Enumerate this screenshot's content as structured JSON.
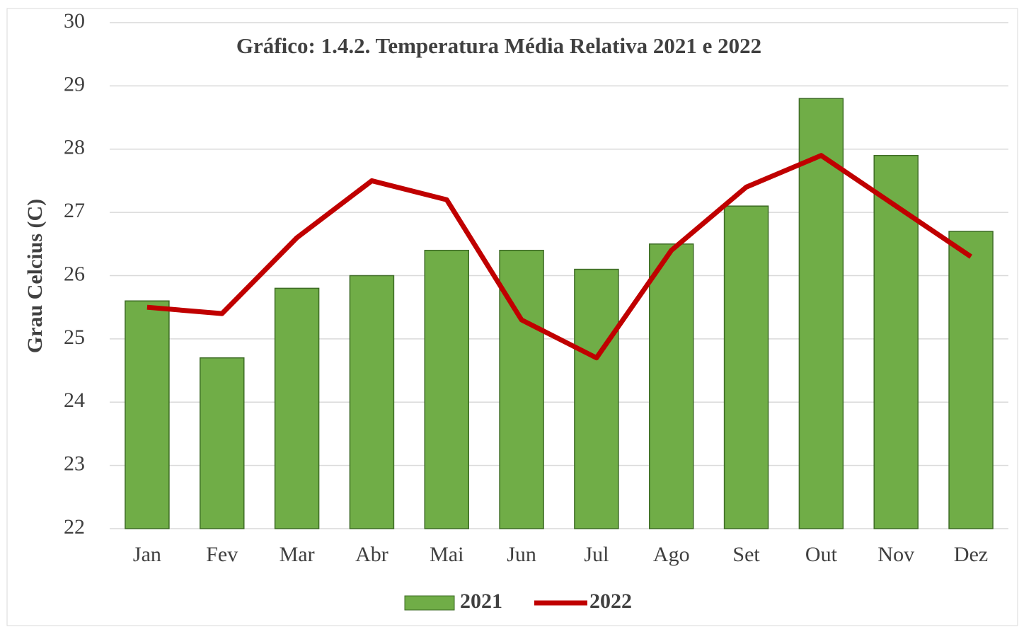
{
  "chart_data": {
    "type": "bar",
    "title": "Gráfico: 1.4.2. Temperatura Média Relativa 2021 e 2022",
    "y_label": "Grau Celcius (C)",
    "categories": [
      "Jan",
      "Fev",
      "Mar",
      "Abr",
      "Mai",
      "Jun",
      "Jul",
      "Ago",
      "Set",
      "Out",
      "Nov",
      "Dez"
    ],
    "series": [
      {
        "name": "2021",
        "type": "bar",
        "color": "#70ad47",
        "values": [
          25.6,
          24.7,
          25.8,
          26.0,
          26.4,
          26.4,
          26.1,
          26.5,
          27.1,
          28.8,
          27.9,
          26.7
        ]
      },
      {
        "name": "2022",
        "type": "line",
        "color": "#c00000",
        "values": [
          25.5,
          25.4,
          26.6,
          27.5,
          27.2,
          25.3,
          24.7,
          26.4,
          27.4,
          27.9,
          27.1,
          26.3
        ]
      }
    ],
    "ylim": [
      22,
      30
    ],
    "yticks": [
      22,
      23,
      24,
      25,
      26,
      27,
      28,
      29,
      30
    ],
    "grid": true,
    "legend": "bottom"
  }
}
